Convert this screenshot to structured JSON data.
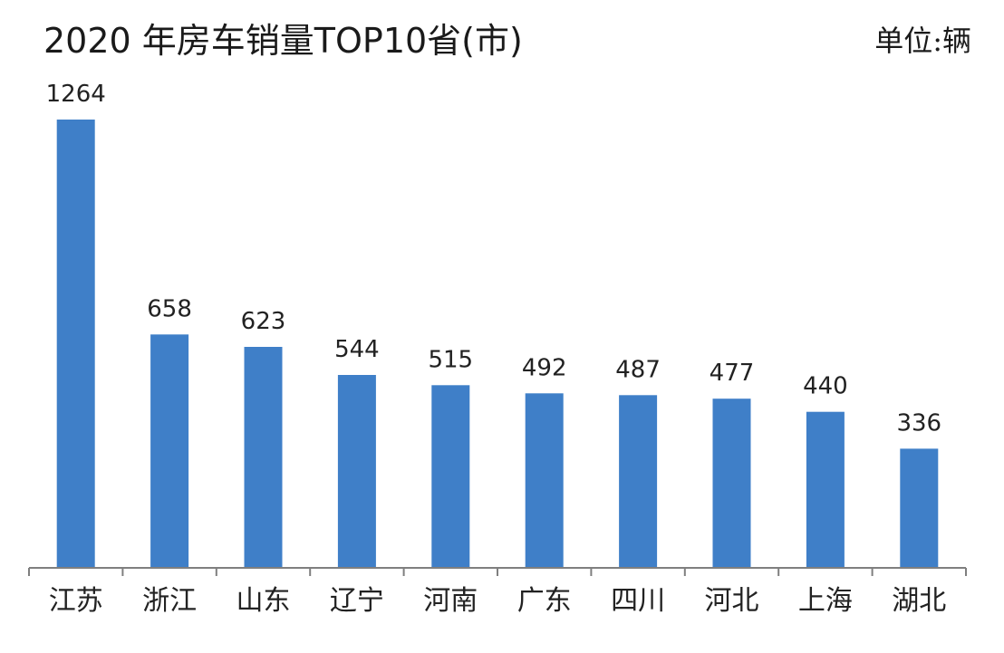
{
  "title": "2020 年房车销量TOP10省(市)",
  "unit": "单位:辆",
  "colors": {
    "bar": "#3f7fc8",
    "axis": "#7f7f7f",
    "text": "#222222"
  },
  "chart_data": {
    "type": "bar",
    "title": "2020 年房车销量TOP10省(市)",
    "unit": "单位:辆",
    "categories": [
      "江苏",
      "浙江",
      "山东",
      "辽宁",
      "河南",
      "广东",
      "四川",
      "河北",
      "上海",
      "湖北"
    ],
    "values": [
      1264,
      658,
      623,
      544,
      515,
      492,
      487,
      477,
      440,
      336
    ],
    "xlabel": "",
    "ylabel": "",
    "ylim": [
      0,
      1264
    ],
    "grid": false,
    "legend": "none"
  }
}
